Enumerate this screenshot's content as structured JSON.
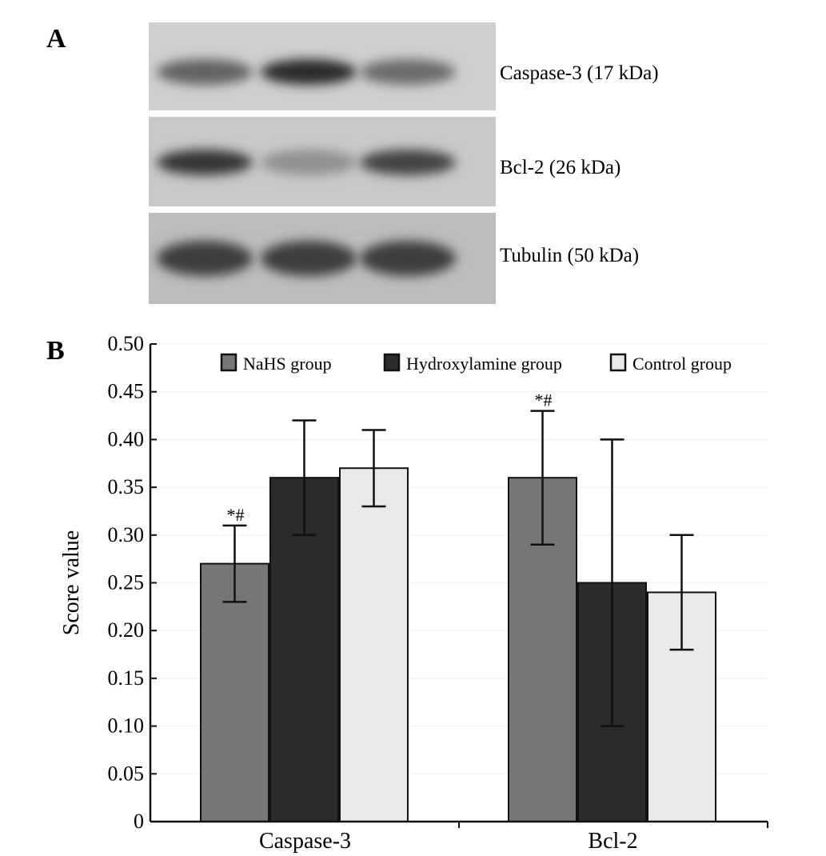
{
  "panel_a": {
    "label": "A",
    "bands": [
      {
        "label": "Caspase-3 (17 kDa)",
        "intensity": [
          0.55,
          0.85,
          0.5
        ]
      },
      {
        "label": "Bcl-2 (26 kDa)",
        "intensity": [
          0.8,
          0.3,
          0.72
        ]
      },
      {
        "label": "Tubulin (50 kDa)",
        "intensity": [
          0.75,
          0.75,
          0.75
        ]
      }
    ]
  },
  "panel_b": {
    "label": "B"
  },
  "chart_data": {
    "type": "bar",
    "ylabel": "Score value",
    "ylim": [
      0,
      0.5
    ],
    "yticks": [
      "0",
      "0.05",
      "0.10",
      "0.15",
      "0.20",
      "0.25",
      "0.30",
      "0.35",
      "0.40",
      "0.45",
      "0.50"
    ],
    "categories": [
      "Caspase-3",
      "Bcl-2"
    ],
    "series": [
      {
        "name": "NaHS group",
        "color": "#767676",
        "values": [
          0.27,
          0.36
        ],
        "err_low": [
          0.23,
          0.29
        ],
        "err_high": [
          0.31,
          0.43
        ],
        "annotations": [
          "*#",
          "*#"
        ]
      },
      {
        "name": "Hydroxylamine group",
        "color": "#2b2b2b",
        "values": [
          0.36,
          0.25
        ],
        "err_low": [
          0.3,
          0.1
        ],
        "err_high": [
          0.42,
          0.4
        ],
        "annotations": [
          "",
          ""
        ]
      },
      {
        "name": "Control group",
        "color": "#e9e9e9",
        "values": [
          0.37,
          0.24
        ],
        "err_low": [
          0.33,
          0.18
        ],
        "err_high": [
          0.41,
          0.3
        ],
        "annotations": [
          "",
          ""
        ]
      }
    ],
    "legend_position": "top"
  }
}
